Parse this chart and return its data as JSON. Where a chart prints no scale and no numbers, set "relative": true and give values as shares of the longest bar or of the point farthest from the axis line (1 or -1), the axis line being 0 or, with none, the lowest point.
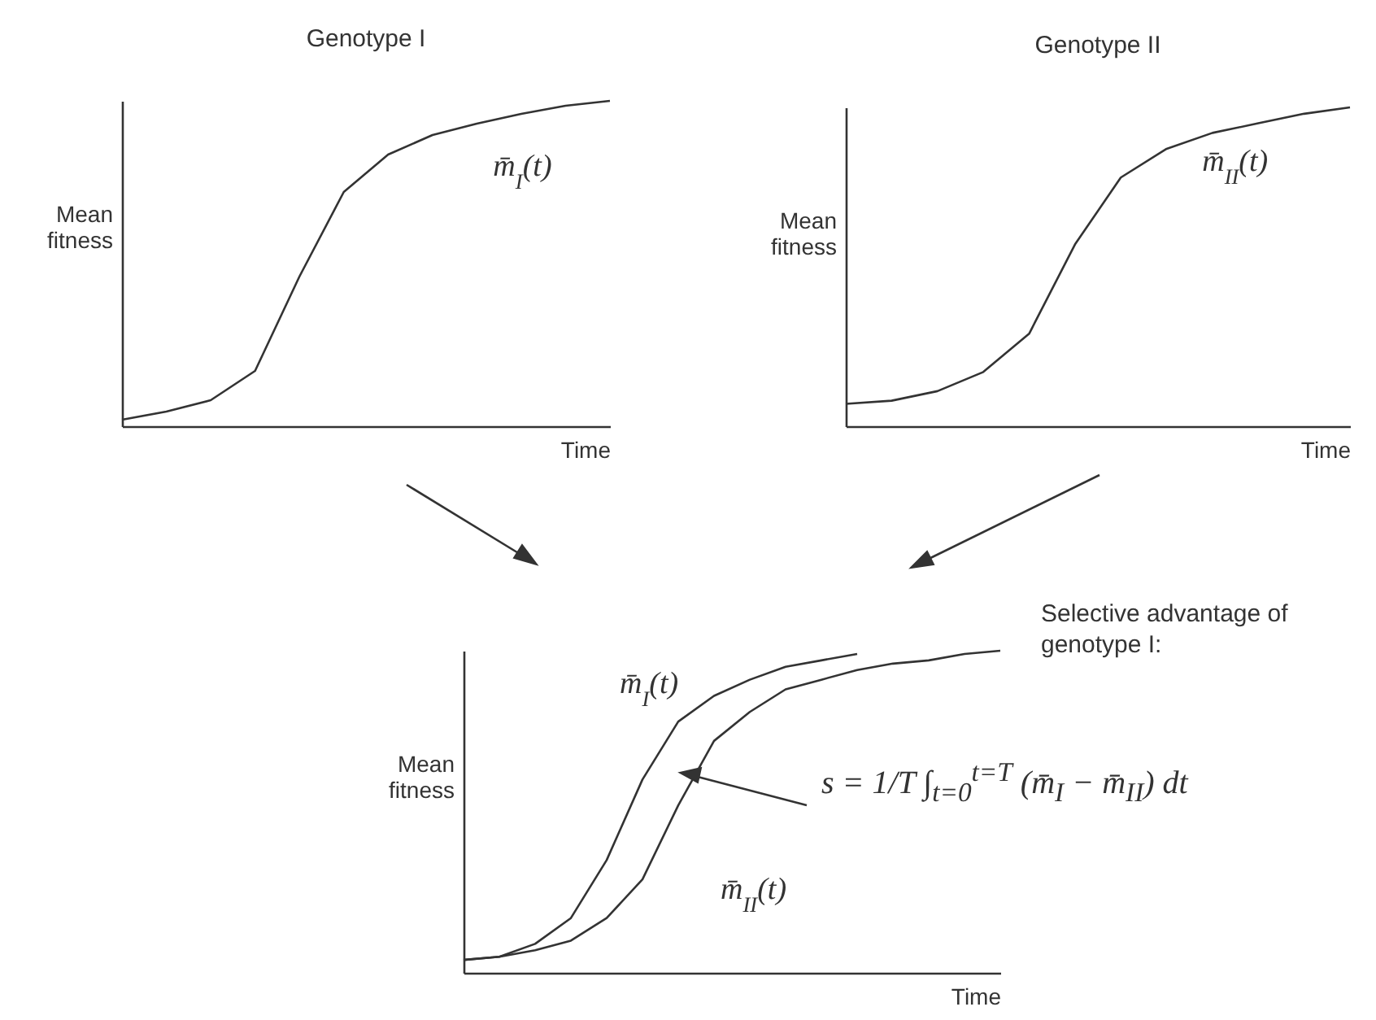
{
  "chart_data": [
    {
      "type": "line",
      "title": "Genotype I",
      "xlabel": "Time",
      "ylabel": "Mean fitness",
      "relative": true,
      "categories": [
        null,
        null,
        null,
        null,
        null,
        null,
        null,
        null,
        null,
        null,
        null,
        null
      ],
      "series": [
        {
          "name": "m̄$_{I}$(t)",
          "color": "#333333",
          "values": [
            0.02,
            0.045,
            0.08,
            0.17,
            0.46,
            0.72,
            0.835,
            0.895,
            0.93,
            0.96,
            0.985,
            1
          ]
        }
      ]
    },
    {
      "type": "line",
      "title": "Genotype II",
      "xlabel": "Time",
      "ylabel": "Mean fitness",
      "relative": true,
      "categories": [
        null,
        null,
        null,
        null,
        null,
        null,
        null,
        null,
        null,
        null,
        null,
        null
      ],
      "series": [
        {
          "name": "m̄$_{II}$(t)",
          "color": "#333333",
          "values": [
            0.07,
            0.08,
            0.11,
            0.17,
            0.29,
            0.57,
            0.78,
            0.87,
            0.92,
            0.95,
            0.98,
            1
          ]
        }
      ]
    },
    {
      "type": "line",
      "xlabel": "Time",
      "ylabel": "Mean fitness",
      "relative": true,
      "categories": [
        null,
        null,
        null,
        null,
        null,
        null,
        null,
        null,
        null,
        null,
        null,
        null,
        null,
        null,
        null,
        null
      ],
      "series": [
        {
          "name": "m̄$_{I}$(t)",
          "color": "#333333",
          "values": [
            0.04,
            0.05,
            0.09,
            0.17,
            0.35,
            0.6,
            0.78,
            0.86,
            0.91,
            0.95,
            0.97,
            0.99,
            null,
            null,
            null,
            null
          ]
        },
        {
          "name": "m̄$_{II}$(t)",
          "color": "#333333",
          "values": [
            0.04,
            0.05,
            0.07,
            0.1,
            0.17,
            0.29,
            0.52,
            0.72,
            0.81,
            0.88,
            0.91,
            0.94,
            0.96,
            0.97,
            0.99,
            1
          ]
        }
      ],
      "annotations": [
        "Selective advantage of genotype I:",
        "s = 1/T ∫$_{t=0}$$^{t=T}$ (m̄$_{I}$ − m̄$_{II}$) dt"
      ]
    }
  ]
}
